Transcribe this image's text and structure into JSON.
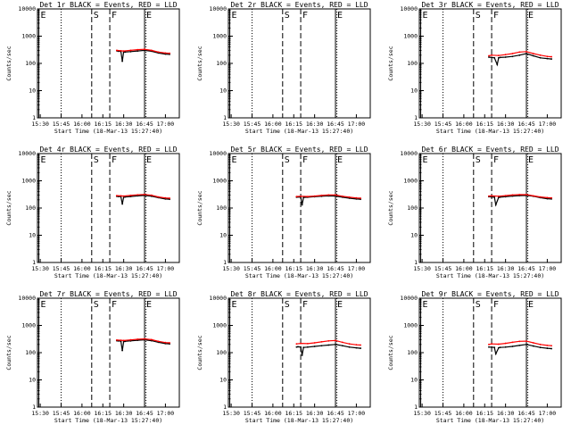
{
  "chart_data": [
    {
      "type": "line",
      "title": "Det 1r BLACK = Events, RED = LLD",
      "xlabel": "Start Time (18-Mar-13 15:27:40)",
      "ylabel": "Counts/sec",
      "yscale": "log",
      "ylim": [
        1,
        10000
      ],
      "y_ticks": [
        "1",
        "10",
        "100",
        "1000",
        "10000"
      ],
      "x_ticks": [
        "15:30",
        "15:45",
        "16:00",
        "16:15",
        "16:30",
        "16:45",
        "17:00"
      ],
      "markers": [
        "E",
        "S",
        "F",
        "E"
      ],
      "series": [
        {
          "color": "#000000",
          "x": [
            "16:25",
            "16:26",
            "16:28",
            "16:29",
            "16:30",
            "16:31",
            "16:35",
            "16:40",
            "16:45",
            "16:50",
            "16:55",
            "17:00",
            "17:03"
          ],
          "y": [
            290,
            280,
            275,
            120,
            265,
            260,
            270,
            285,
            300,
            280,
            240,
            220,
            215
          ]
        },
        {
          "color": "#ff0000",
          "x": [
            "16:25",
            "16:28",
            "16:30",
            "16:35",
            "16:40",
            "16:45",
            "16:50",
            "16:55",
            "17:00",
            "17:03"
          ],
          "y": [
            300,
            290,
            285,
            300,
            320,
            330,
            300,
            260,
            240,
            235
          ]
        }
      ]
    },
    {
      "type": "line",
      "title": "Det 2r BLACK = Events, RED = LLD",
      "xlabel": "Start Time (18-Mar-13 15:27:40)",
      "ylabel": "Counts/sec",
      "yscale": "log",
      "ylim": [
        1,
        10000
      ],
      "y_ticks": [
        "1",
        "10",
        "100",
        "1000",
        "10000"
      ],
      "x_ticks": [
        "15:30",
        "15:45",
        "16:00",
        "16:15",
        "16:30",
        "16:45",
        "17:00"
      ],
      "markers": [
        "E",
        "S",
        "F",
        "E"
      ],
      "series": []
    },
    {
      "type": "line",
      "title": "Det 3r BLACK = Events, RED = LLD",
      "xlabel": "Start Time (18-Mar-13 15:27:40)",
      "ylabel": "Counts/sec",
      "yscale": "log",
      "ylim": [
        1,
        10000
      ],
      "y_ticks": [
        "1",
        "10",
        "100",
        "1000",
        "10000"
      ],
      "x_ticks": [
        "15:30",
        "15:45",
        "16:00",
        "16:15",
        "16:30",
        "16:45",
        "17:00"
      ],
      "markers": [
        "E",
        "S",
        "F",
        "E"
      ],
      "series": [
        {
          "color": "#000000",
          "x": [
            "16:18",
            "16:20",
            "16:22",
            "16:24",
            "16:25",
            "16:26",
            "16:30",
            "16:35",
            "16:40",
            "16:45",
            "16:50",
            "16:55",
            "17:00",
            "17:03"
          ],
          "y": [
            170,
            165,
            160,
            90,
            160,
            165,
            170,
            180,
            200,
            230,
            190,
            160,
            150,
            145
          ]
        },
        {
          "color": "#ff0000",
          "x": [
            "16:18",
            "16:20",
            "16:25",
            "16:30",
            "16:35",
            "16:40",
            "16:45",
            "16:50",
            "16:55",
            "17:00",
            "17:03"
          ],
          "y": [
            190,
            200,
            195,
            210,
            230,
            260,
            270,
            230,
            200,
            180,
            175
          ]
        }
      ]
    },
    {
      "type": "line",
      "title": "Det 4r BLACK = Events, RED = LLD",
      "xlabel": "Start Time (18-Mar-13 15:27:40)",
      "ylabel": "Counts/sec",
      "yscale": "log",
      "ylim": [
        1,
        10000
      ],
      "y_ticks": [
        "1",
        "10",
        "100",
        "1000",
        "10000"
      ],
      "x_ticks": [
        "15:30",
        "15:45",
        "16:00",
        "16:15",
        "16:30",
        "16:45",
        "17:00"
      ],
      "markers": [
        "E",
        "S",
        "F",
        "E"
      ],
      "series": [
        {
          "color": "#000000",
          "x": [
            "16:25",
            "16:26",
            "16:28",
            "16:29",
            "16:30",
            "16:31",
            "16:35",
            "16:40",
            "16:45",
            "16:50",
            "16:55",
            "17:00",
            "17:03"
          ],
          "y": [
            270,
            265,
            260,
            140,
            250,
            255,
            265,
            280,
            290,
            270,
            240,
            215,
            210
          ]
        },
        {
          "color": "#ff0000",
          "x": [
            "16:25",
            "16:28",
            "16:30",
            "16:35",
            "16:40",
            "16:45",
            "16:50",
            "16:55",
            "17:00",
            "17:03"
          ],
          "y": [
            285,
            280,
            275,
            290,
            305,
            315,
            295,
            255,
            235,
            230
          ]
        }
      ]
    },
    {
      "type": "line",
      "title": "Det 5r BLACK = Events, RED = LLD",
      "xlabel": "Start Time (18-Mar-13 15:27:40)",
      "ylabel": "Counts/sec",
      "yscale": "log",
      "ylim": [
        1,
        10000
      ],
      "y_ticks": [
        "1",
        "10",
        "100",
        "1000",
        "10000"
      ],
      "x_ticks": [
        "15:30",
        "15:45",
        "16:00",
        "16:15",
        "16:30",
        "16:45",
        "17:00"
      ],
      "markers": [
        "E",
        "S",
        "F",
        "E"
      ],
      "series": [
        {
          "color": "#000000",
          "x": [
            "16:17",
            "16:18",
            "16:20",
            "16:21",
            "16:22",
            "16:25",
            "16:30",
            "16:35",
            "16:40",
            "16:45",
            "16:50",
            "16:55",
            "17:00",
            "17:03"
          ],
          "y": [
            250,
            255,
            250,
            130,
            245,
            250,
            260,
            270,
            280,
            275,
            250,
            230,
            215,
            210
          ]
        },
        {
          "color": "#ff0000",
          "x": [
            "16:17",
            "16:20",
            "16:25",
            "16:30",
            "16:35",
            "16:40",
            "16:45",
            "16:50",
            "16:55",
            "17:00",
            "17:03"
          ],
          "y": [
            265,
            270,
            265,
            275,
            290,
            300,
            300,
            270,
            250,
            235,
            230
          ]
        }
      ]
    },
    {
      "type": "line",
      "title": "Det 6r BLACK = Events, RED = LLD",
      "xlabel": "Start Time (18-Mar-13 15:27:40)",
      "ylabel": "Counts/sec",
      "yscale": "log",
      "ylim": [
        1,
        10000
      ],
      "y_ticks": [
        "1",
        "10",
        "100",
        "1000",
        "10000"
      ],
      "x_ticks": [
        "15:30",
        "15:45",
        "16:00",
        "16:15",
        "16:30",
        "16:45",
        "17:00"
      ],
      "markers": [
        "E",
        "S",
        "F",
        "E"
      ],
      "series": [
        {
          "color": "#000000",
          "x": [
            "16:18",
            "16:20",
            "16:22",
            "16:23",
            "16:25",
            "16:26",
            "16:30",
            "16:35",
            "16:40",
            "16:45",
            "16:50",
            "16:55",
            "17:00",
            "17:03"
          ],
          "y": [
            260,
            255,
            250,
            130,
            245,
            250,
            260,
            275,
            285,
            290,
            270,
            240,
            220,
            215
          ]
        },
        {
          "color": "#ff0000",
          "x": [
            "16:18",
            "16:20",
            "16:25",
            "16:30",
            "16:35",
            "16:40",
            "16:45",
            "16:50",
            "16:55",
            "17:00",
            "17:03"
          ],
          "y": [
            275,
            280,
            270,
            285,
            300,
            310,
            310,
            280,
            255,
            240,
            235
          ]
        }
      ]
    },
    {
      "type": "line",
      "title": "Det 7r BLACK = Events, RED = LLD",
      "xlabel": "Start Time (18-Mar-13 15:27:40)",
      "ylabel": "Counts/sec",
      "yscale": "log",
      "ylim": [
        1,
        10000
      ],
      "y_ticks": [
        "1",
        "10",
        "100",
        "1000",
        "10000"
      ],
      "x_ticks": [
        "15:30",
        "15:45",
        "16:00",
        "16:15",
        "16:30",
        "16:45",
        "17:00"
      ],
      "markers": [
        "E",
        "S",
        "F",
        "E"
      ],
      "series": [
        {
          "color": "#000000",
          "x": [
            "16:25",
            "16:26",
            "16:28",
            "16:29",
            "16:30",
            "16:31",
            "16:35",
            "16:40",
            "16:45",
            "16:50",
            "16:55",
            "17:00",
            "17:03"
          ],
          "y": [
            275,
            270,
            265,
            120,
            255,
            260,
            270,
            285,
            295,
            275,
            240,
            215,
            210
          ]
        },
        {
          "color": "#ff0000",
          "x": [
            "16:25",
            "16:28",
            "16:30",
            "16:35",
            "16:40",
            "16:45",
            "16:50",
            "16:55",
            "17:00",
            "17:03"
          ],
          "y": [
            290,
            285,
            280,
            295,
            310,
            320,
            300,
            260,
            235,
            230
          ]
        }
      ]
    },
    {
      "type": "line",
      "title": "Det 8r BLACK = Events, RED = LLD",
      "xlabel": "Start Time (18-Mar-13 15:27:40)",
      "ylabel": "Counts/sec",
      "yscale": "log",
      "ylim": [
        1,
        10000
      ],
      "y_ticks": [
        "1",
        "10",
        "100",
        "1000",
        "10000"
      ],
      "x_ticks": [
        "15:30",
        "15:45",
        "16:00",
        "16:15",
        "16:30",
        "16:45",
        "17:00"
      ],
      "markers": [
        "E",
        "S",
        "F",
        "E"
      ],
      "series": [
        {
          "color": "#000000",
          "x": [
            "16:17",
            "16:18",
            "16:20",
            "16:21",
            "16:22",
            "16:25",
            "16:30",
            "16:35",
            "16:40",
            "16:45",
            "16:50",
            "16:55",
            "17:00",
            "17:03"
          ],
          "y": [
            160,
            165,
            160,
            80,
            155,
            160,
            170,
            180,
            190,
            200,
            180,
            160,
            150,
            145
          ]
        },
        {
          "color": "#ff0000",
          "x": [
            "16:17",
            "16:20",
            "16:25",
            "16:30",
            "16:35",
            "16:40",
            "16:45",
            "16:50",
            "16:55",
            "17:00",
            "17:03"
          ],
          "y": [
            210,
            220,
            215,
            230,
            250,
            270,
            280,
            240,
            210,
            195,
            190
          ]
        }
      ]
    },
    {
      "type": "line",
      "title": "Det 9r BLACK = Events, RED = LLD",
      "xlabel": "Start Time (18-Mar-13 15:27:40)",
      "ylabel": "Counts/sec",
      "yscale": "log",
      "ylim": [
        1,
        10000
      ],
      "y_ticks": [
        "1",
        "10",
        "100",
        "1000",
        "10000"
      ],
      "x_ticks": [
        "15:30",
        "15:45",
        "16:00",
        "16:15",
        "16:30",
        "16:45",
        "17:00"
      ],
      "markers": [
        "E",
        "S",
        "F",
        "E"
      ],
      "series": [
        {
          "color": "#000000",
          "x": [
            "16:18",
            "16:20",
            "16:22",
            "16:23",
            "16:25",
            "16:26",
            "16:30",
            "16:35",
            "16:40",
            "16:45",
            "16:50",
            "16:55",
            "17:00",
            "17:03"
          ],
          "y": [
            160,
            158,
            155,
            90,
            150,
            155,
            160,
            170,
            185,
            200,
            175,
            155,
            145,
            140
          ]
        },
        {
          "color": "#ff0000",
          "x": [
            "16:18",
            "16:20",
            "16:25",
            "16:30",
            "16:35",
            "16:40",
            "16:45",
            "16:50",
            "16:55",
            "17:00",
            "17:03"
          ],
          "y": [
            200,
            210,
            205,
            220,
            240,
            260,
            265,
            230,
            200,
            185,
            180
          ]
        }
      ]
    }
  ]
}
